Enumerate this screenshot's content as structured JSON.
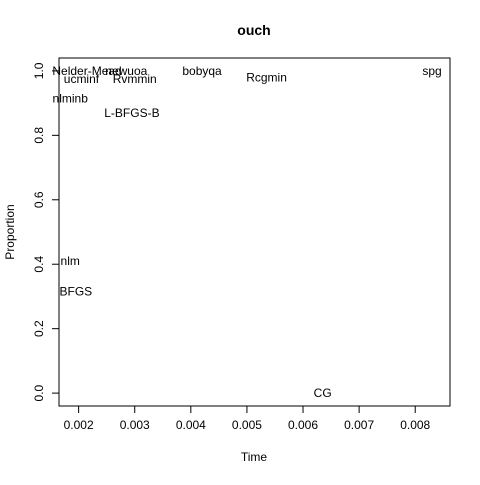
{
  "chart_data": {
    "type": "scatter",
    "title": "ouch",
    "xlabel": "Time",
    "ylabel": "Proportion",
    "xlim": [
      0.00165,
      0.00862
    ],
    "ylim": [
      -0.04,
      1.04
    ],
    "xticks": [
      0.002,
      0.003,
      0.004,
      0.005,
      0.006,
      0.007,
      0.008
    ],
    "xtick_labels": [
      "0.002",
      "0.003",
      "0.004",
      "0.005",
      "0.006",
      "0.007",
      "0.008"
    ],
    "yticks": [
      0.0,
      0.2,
      0.4,
      0.6,
      0.8,
      1.0
    ],
    "ytick_labels": [
      "0.0",
      "0.2",
      "0.4",
      "0.6",
      "0.8",
      "1.0"
    ],
    "grid": false,
    "points": [
      {
        "label": "Nelder-Mead",
        "x": 0.00215,
        "y": 1.0
      },
      {
        "label": "newuoa",
        "x": 0.00285,
        "y": 1.0
      },
      {
        "label": "bobyqa",
        "x": 0.0042,
        "y": 1.0
      },
      {
        "label": "spg",
        "x": 0.0083,
        "y": 1.0
      },
      {
        "label": "ucminf",
        "x": 0.00205,
        "y": 0.975
      },
      {
        "label": "Rvmmin",
        "x": 0.003,
        "y": 0.975
      },
      {
        "label": "Rcgmin",
        "x": 0.00535,
        "y": 0.98
      },
      {
        "label": "nlminb",
        "x": 0.00185,
        "y": 0.915
      },
      {
        "label": "L-BFGS-B",
        "x": 0.00295,
        "y": 0.87
      },
      {
        "label": "nlm",
        "x": 0.00185,
        "y": 0.41
      },
      {
        "label": "BFGS",
        "x": 0.00195,
        "y": 0.315
      },
      {
        "label": "CG",
        "x": 0.00635,
        "y": 0.0
      }
    ]
  }
}
